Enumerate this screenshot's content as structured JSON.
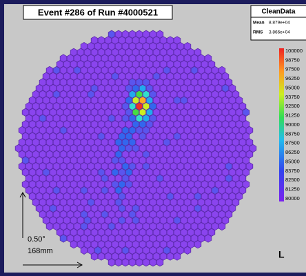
{
  "header": {
    "title": "Event #286 of Run #4000521"
  },
  "stats": {
    "title": "CleanData",
    "rows": [
      [
        "Mean",
        "8.879e+04"
      ],
      [
        "RMS",
        "3.866e+04"
      ]
    ]
  },
  "colorbar": {
    "labels": [
      100000,
      98750,
      97500,
      96250,
      95000,
      93750,
      92500,
      91250,
      90000,
      88750,
      87500,
      86250,
      85000,
      83750,
      82500,
      81250,
      80000
    ]
  },
  "scale": {
    "angle": "0.50°",
    "length": "168mm"
  },
  "corner_label": "L"
}
